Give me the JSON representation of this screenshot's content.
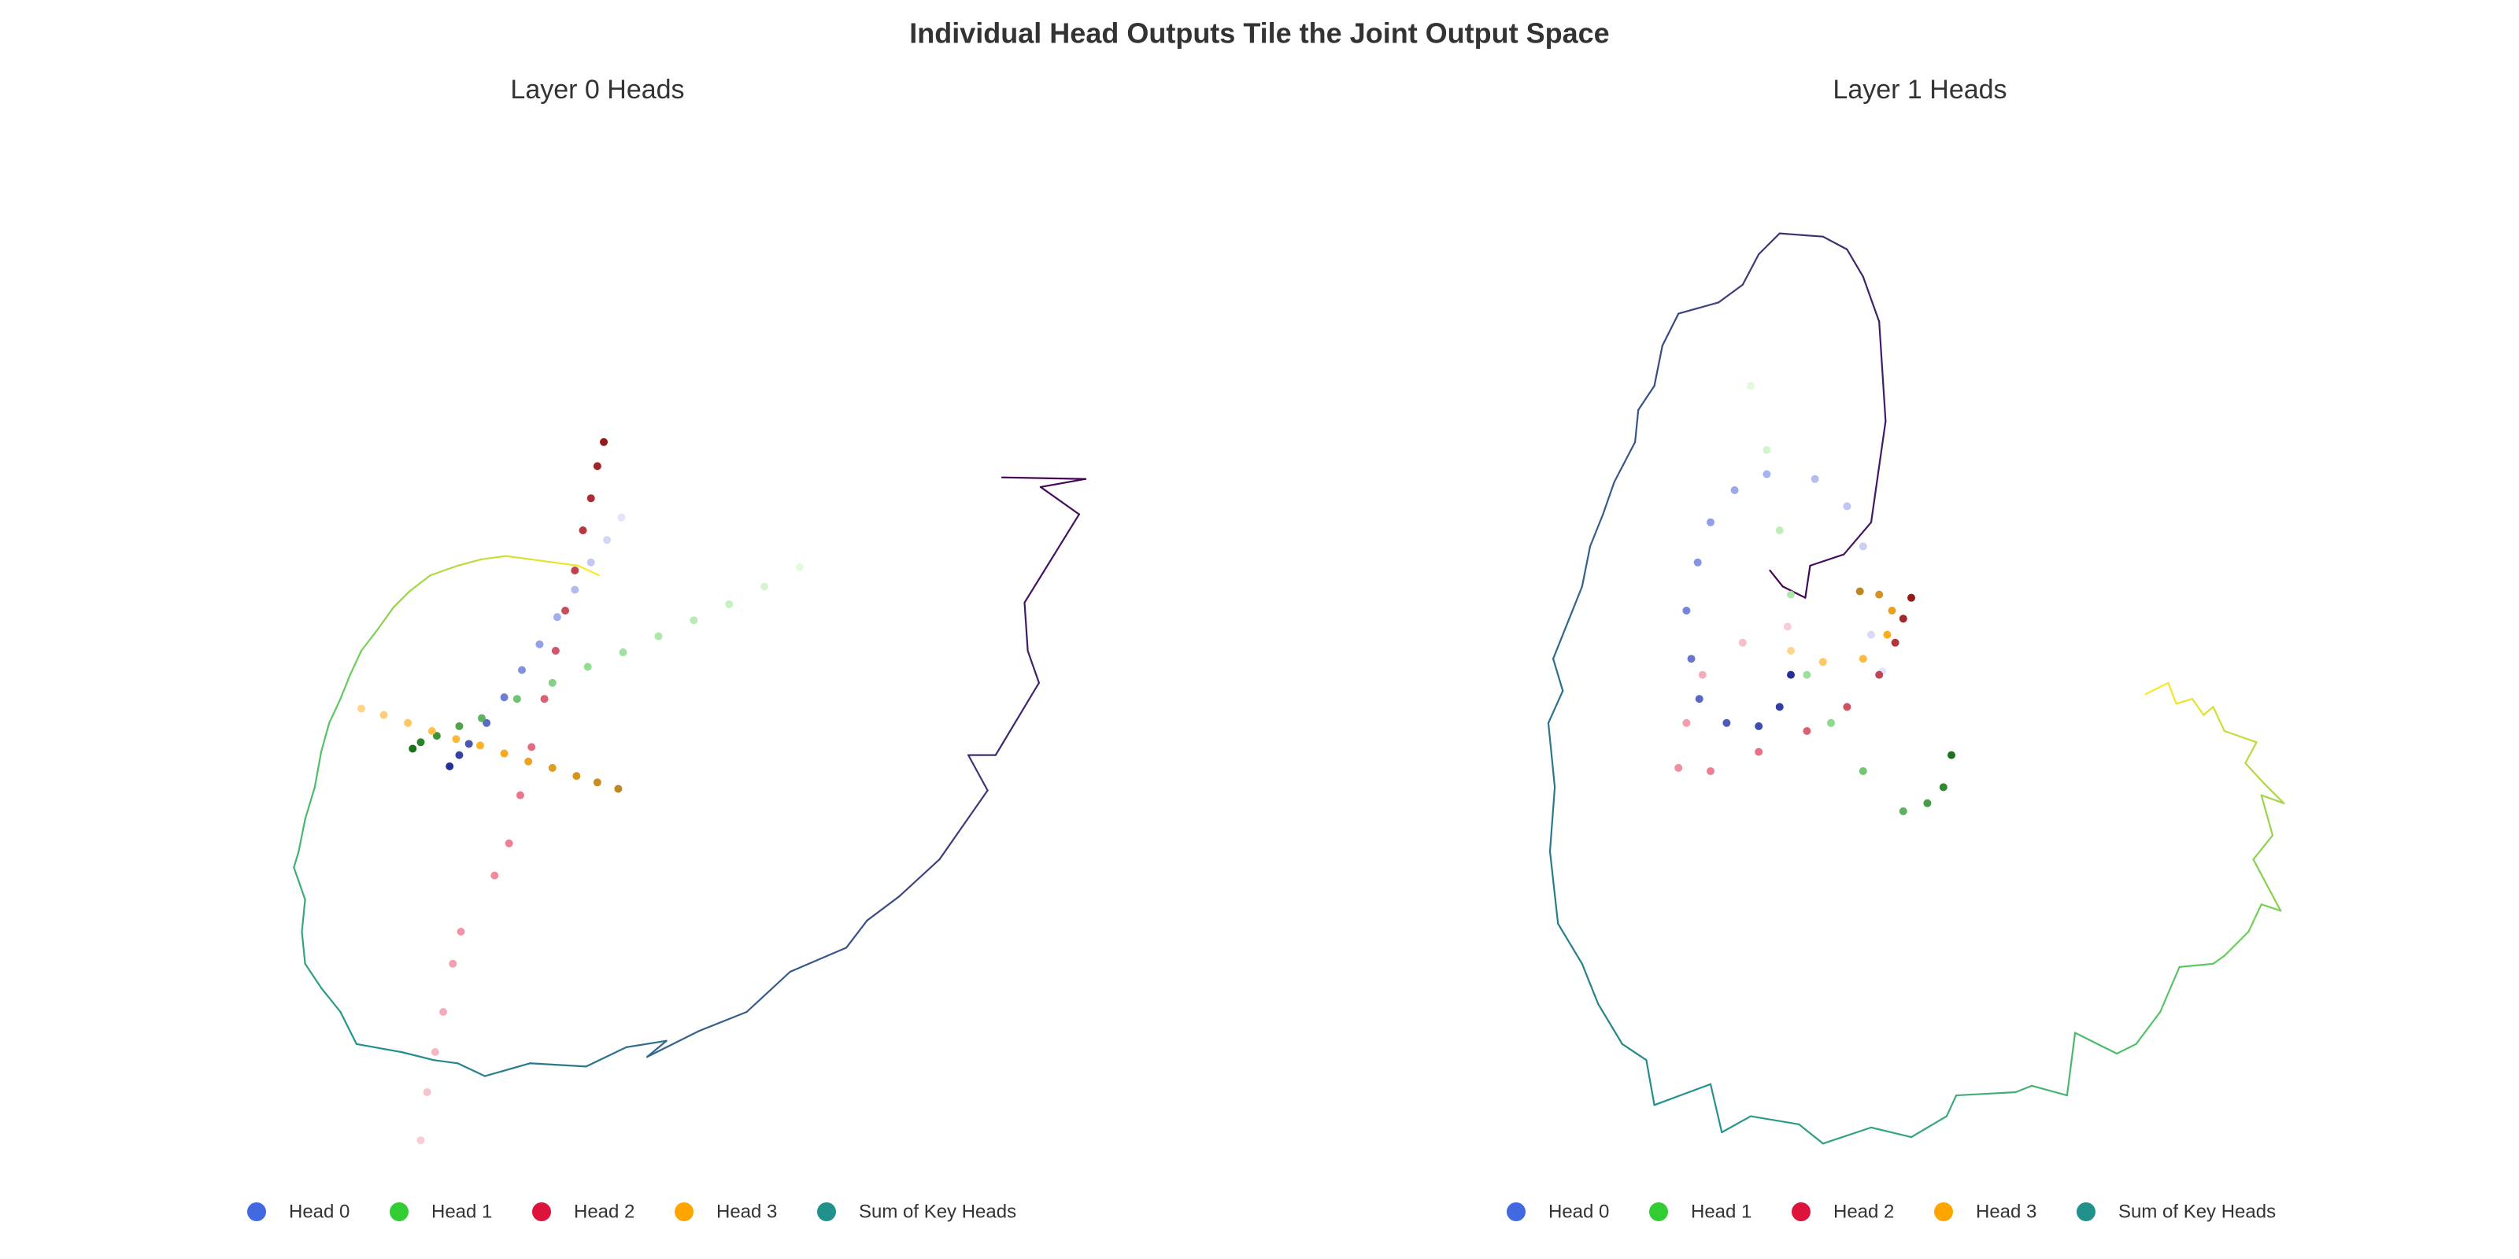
{
  "title": "Individual Head Outputs Tile the Joint Output Space",
  "chart_data": [
    {
      "type": "scatter",
      "title": "Layer 0 Heads",
      "xlim": [
        0,
        56
      ],
      "ylim": [
        0,
        64
      ],
      "legend": "bottom",
      "series": [
        {
          "name": "Sum of Key Heads",
          "mode": "line",
          "color": "#21918c",
          "gradient": [
            "#fde725",
            "#5ec962",
            "#21918c",
            "#3b528b",
            "#440154"
          ],
          "x": [
            22.3,
            21,
            19.5,
            18,
            16.5,
            15,
            13.5,
            11.8,
            10.5,
            9.5,
            8.5,
            7.5,
            6.8,
            6.2,
            5.5,
            5,
            4.6,
            4,
            3.6,
            3.3,
            4,
            3.8,
            4,
            5,
            6.2,
            7.2,
            10,
            12,
            13.5,
            15.2,
            18,
            21.5,
            24,
            26.5,
            25.3,
            28.5,
            31.5,
            34.2,
            37.7,
            39,
            41,
            43.5,
            46.5,
            45.3,
            47,
            49.7,
            49,
            48.8,
            52.2,
            49.8,
            52.6,
            47.4
          ],
          "y": [
            37.2,
            37.8,
            38,
            38.2,
            38.4,
            38.2,
            37.8,
            37.2,
            36.2,
            35.2,
            33.8,
            32.5,
            31,
            29.5,
            28,
            26.2,
            24,
            22,
            20,
            19,
            17,
            15,
            13,
            11.5,
            10,
            8,
            7.5,
            7,
            6.8,
            6,
            6.8,
            6.6,
            7.8,
            8.2,
            7.2,
            8.8,
            10,
            12.5,
            14,
            15.7,
            17.2,
            19.5,
            23.8,
            26,
            26,
            30.5,
            32.5,
            35.5,
            41,
            42.7,
            43.2,
            43.3
          ]
        },
        {
          "name": "Head 0",
          "mode": "markers",
          "color": "#4169e1",
          "gradient": [
            "#e0e0f8",
            "#7f8fe6",
            "#0a1a8c"
          ],
          "x": [
            23.7,
            22.8,
            21.8,
            20.8,
            19.7,
            18.6,
            17.5,
            16.4,
            15.3,
            14.2,
            13.6,
            13
          ],
          "y": [
            40.8,
            39.4,
            38,
            36.3,
            34.6,
            32.9,
            31.3,
            29.6,
            28,
            26.7,
            26,
            25.3
          ]
        },
        {
          "name": "Head 1",
          "mode": "markers",
          "color": "#32cd32",
          "gradient": [
            "#e0fad8",
            "#7fd67f",
            "#006400"
          ],
          "x": [
            34.8,
            32.6,
            30.4,
            28.2,
            26,
            23.8,
            21.6,
            19.4,
            17.2,
            15,
            13.6,
            12.2,
            11.2,
            10.7
          ],
          "y": [
            37.7,
            36.5,
            35.4,
            34.4,
            33.4,
            32.4,
            31.5,
            30.5,
            29.5,
            28.3,
            27.8,
            27.2,
            26.8,
            26.4
          ]
        },
        {
          "name": "Head 2",
          "mode": "markers",
          "color": "#dc143c",
          "gradient": [
            "#f8c8d0",
            "#e8607a",
            "#8b0000"
          ],
          "x": [
            11.2,
            11.6,
            12.1,
            12.6,
            13.2,
            13.7,
            15.8,
            16.7,
            17.4,
            18.1,
            18.9,
            19.6,
            20.2,
            20.8,
            21.3,
            21.8,
            22.2,
            22.6
          ],
          "y": [
            2,
            5,
            7.5,
            10,
            13,
            15,
            18.5,
            20.5,
            23.5,
            26.5,
            29.5,
            32.5,
            35,
            37.5,
            40,
            42,
            44,
            45.5
          ]
        },
        {
          "name": "Head 3",
          "mode": "markers",
          "color": "#ffa500",
          "gradient": [
            "#ffd080",
            "#ffa500",
            "#b8780b"
          ],
          "x": [
            7.5,
            8.9,
            10.4,
            11.9,
            13.4,
            14.9,
            16.4,
            17.9,
            19.4,
            20.9,
            22.2,
            23.5
          ],
          "y": [
            28.9,
            28.5,
            28,
            27.5,
            27,
            26.6,
            26.1,
            25.6,
            25.2,
            24.7,
            24.3,
            23.9
          ]
        }
      ]
    },
    {
      "type": "scatter",
      "title": "Layer 1 Heads",
      "xlim": [
        0,
        56
      ],
      "ylim": [
        0,
        64
      ],
      "legend": "bottom",
      "series": [
        {
          "name": "Sum of Key Heads",
          "mode": "line",
          "color": "#21918c",
          "gradient": [
            "#fde725",
            "#5ec962",
            "#21918c",
            "#3b528b",
            "#440154"
          ],
          "x": [
            39.6,
            41,
            41.5,
            42.5,
            43.2,
            43.8,
            44.5,
            46.5,
            45.8,
            47,
            48.2,
            46.8,
            47.5,
            46.3,
            48,
            46.8,
            46,
            44.5,
            43.8,
            41.7,
            40.5,
            39,
            37.8,
            35.2,
            34.7,
            32.5,
            31.5,
            27.8,
            27.2,
            25,
            22.5,
            19.5,
            18,
            15,
            13.2,
            12.5,
            9,
            8.5,
            7,
            5.5,
            4.5,
            3,
            2.5,
            2.8,
            2.4,
            3.3,
            2.7,
            3.7,
            4.5,
            5,
            5.8,
            6.5,
            7.8,
            8,
            9,
            9.5,
            10.5,
            13,
            14.5,
            15.5,
            16.8,
            19.5,
            21,
            22,
            23,
            23.4,
            22.5,
            20.8,
            18.7,
            18.4,
            17,
            16.2
          ],
          "y": [
            29.8,
            30.5,
            29.2,
            29.5,
            28.5,
            29,
            27.5,
            26.8,
            25.5,
            24.2,
            23,
            23.5,
            21,
            19.5,
            16.3,
            16.7,
            15,
            13.5,
            13,
            12.8,
            10,
            8,
            7.4,
            8.7,
            4.8,
            5.4,
            5,
            4.8,
            3.5,
            2.2,
            2.8,
            1.8,
            3,
            3.5,
            2.5,
            5.5,
            4.2,
            7,
            8,
            10.5,
            13,
            15.5,
            20,
            24,
            28,
            30,
            32,
            34.5,
            36.5,
            39,
            41,
            43,
            45.5,
            47.5,
            49,
            51.5,
            53.5,
            54.2,
            55.3,
            57.2,
            58.5,
            58.3,
            57.5,
            55.8,
            53,
            46.8,
            40.5,
            38.5,
            37.8,
            35.8,
            36.5,
            37.5
          ]
        },
        {
          "name": "Head 0",
          "mode": "markers",
          "color": "#4169e1",
          "gradient": [
            "#e0e0f8",
            "#7f8fe6",
            "#0a1a8c"
          ],
          "x": [
            23.2,
            22.5,
            22,
            21,
            19,
            16,
            14,
            12.5,
            11.7,
            11,
            11.3,
            11.8,
            13.5,
            15.5,
            16.8,
            17.5
          ],
          "y": [
            31.2,
            33.5,
            39,
            41.5,
            43.2,
            43.5,
            42.5,
            40.5,
            38,
            35,
            32,
            29.5,
            28,
            27.8,
            29,
            31
          ]
        },
        {
          "name": "Head 1",
          "mode": "markers",
          "color": "#32cd32",
          "gradient": [
            "#e0fad8",
            "#7fd67f",
            "#006400"
          ],
          "x": [
            15,
            16,
            16.8,
            17.5,
            18.5,
            20,
            22,
            24.5,
            26,
            27,
            27.5
          ],
          "y": [
            49,
            45,
            40,
            36,
            31,
            28,
            25,
            22.5,
            23,
            24,
            26
          ]
        },
        {
          "name": "Head 2",
          "mode": "markers",
          "color": "#dc143c",
          "gradient": [
            "#f8c8d0",
            "#e8607a",
            "#8b0000"
          ],
          "x": [
            17.3,
            14.5,
            12,
            11,
            10.5,
            12.5,
            15.5,
            18.5,
            21,
            23,
            24,
            24.5,
            25
          ],
          "y": [
            34,
            33,
            31,
            28,
            25.2,
            25,
            26.2,
            27.5,
            29,
            31,
            33,
            34.5,
            35.8
          ]
        },
        {
          "name": "Head 3",
          "mode": "markers",
          "color": "#ffa500",
          "gradient": [
            "#ffd080",
            "#ffa500",
            "#b8780b"
          ],
          "x": [
            17.5,
            19.5,
            22,
            23.5,
            23.8,
            23,
            21.8
          ],
          "y": [
            32.5,
            31.8,
            32,
            33.5,
            35,
            36,
            36.2
          ]
        }
      ]
    }
  ]
}
